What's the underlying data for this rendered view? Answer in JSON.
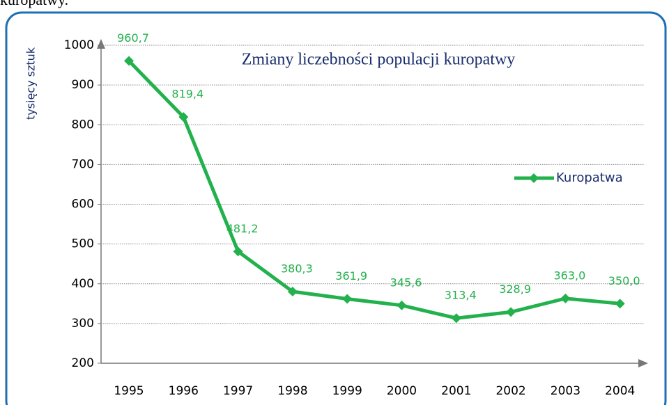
{
  "header": {
    "text": "kuropatwy."
  },
  "chart_data": {
    "type": "line",
    "title": "Zmiany liczebności populacji kuropatwy",
    "y_label": "tysięcy sztuk",
    "categories": [
      "1995",
      "1996",
      "1997",
      "1998",
      "1999",
      "2000",
      "2001",
      "2002",
      "2003",
      "2004"
    ],
    "series": [
      {
        "name": "Kuropatwa",
        "color": "#22b14c",
        "values": [
          960.7,
          819.4,
          481.2,
          380.3,
          361.9,
          345.6,
          313.4,
          328.9,
          363.0,
          350.0
        ],
        "value_labels": [
          "960,7",
          "819,4",
          "481,2",
          "380,3",
          "361,9",
          "345,6",
          "313,4",
          "328,9",
          "363,0",
          "350,0"
        ]
      }
    ],
    "ylim": [
      200,
      1000
    ],
    "yticks": [
      200,
      300,
      400,
      500,
      600,
      700,
      800,
      900,
      1000
    ],
    "grid": true,
    "legend": "right"
  }
}
